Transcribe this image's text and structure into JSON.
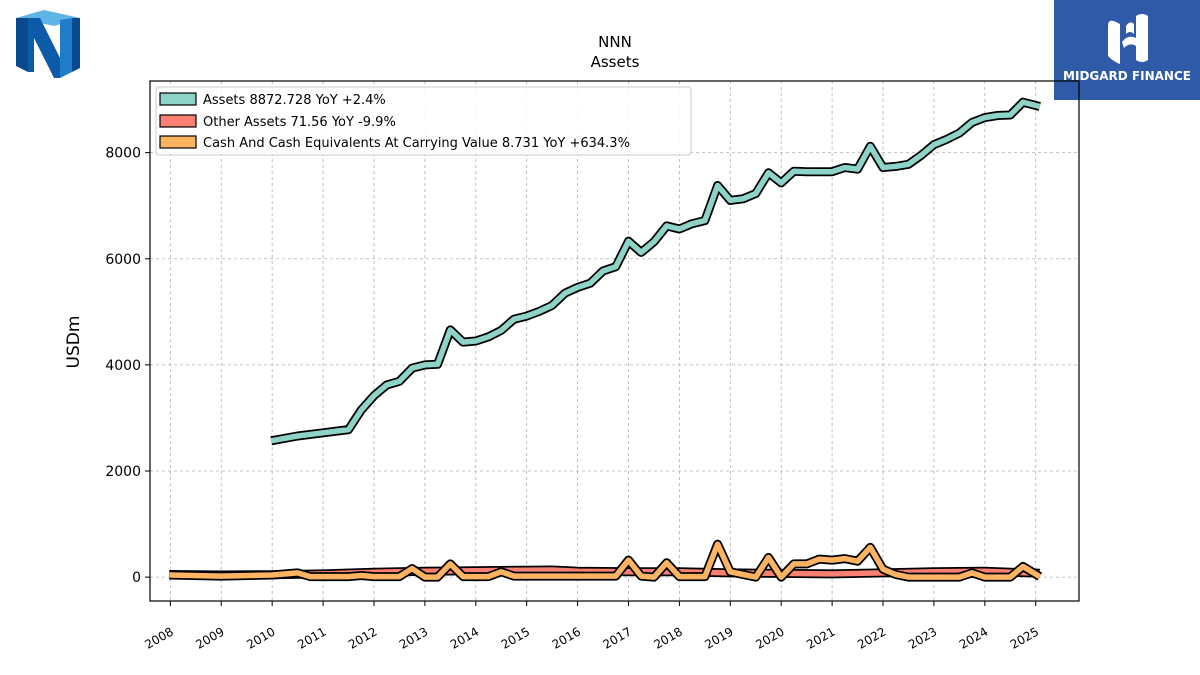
{
  "header": {
    "ticker": "NNN",
    "subtitle": "Assets"
  },
  "brand": {
    "name": "MIDGARD FINANCE",
    "color": "#2f5aa8"
  },
  "chart_data": {
    "type": "line",
    "title": "NNN",
    "subtitle": "Assets",
    "ylabel": "USDm",
    "xlabel": "",
    "xlim": [
      2007.6,
      2025.85
    ],
    "ylim": [
      -450,
      9350
    ],
    "yticks": [
      0,
      2000,
      4000,
      6000,
      8000
    ],
    "xticks": [
      2008,
      2009,
      2010,
      2011,
      2012,
      2013,
      2014,
      2015,
      2016,
      2017,
      2018,
      2019,
      2020,
      2021,
      2022,
      2023,
      2024,
      2025
    ],
    "grid": true,
    "legend_position": "top-left",
    "series": [
      {
        "name": "Assets",
        "legend": "Assets  8872.728 YoY +2.4%",
        "color": "#8dd3c7",
        "x": [
          2009.98,
          2010.5,
          2011.0,
          2011.5,
          2011.75,
          2012.0,
          2012.25,
          2012.5,
          2012.75,
          2013.0,
          2013.25,
          2013.5,
          2013.75,
          2014.0,
          2014.25,
          2014.5,
          2014.75,
          2015.0,
          2015.25,
          2015.5,
          2015.75,
          2016.0,
          2016.25,
          2016.5,
          2016.75,
          2017.0,
          2017.25,
          2017.5,
          2017.75,
          2018.0,
          2018.25,
          2018.5,
          2018.75,
          2019.0,
          2019.25,
          2019.5,
          2019.75,
          2020.0,
          2020.25,
          2020.5,
          2020.75,
          2021.0,
          2021.25,
          2021.5,
          2021.75,
          2022.0,
          2022.25,
          2022.5,
          2022.75,
          2023.0,
          2023.25,
          2023.5,
          2023.75,
          2024.0,
          2024.25,
          2024.5,
          2024.75,
          2025.08
        ],
        "y": [
          2570,
          2660,
          2720,
          2780,
          3150,
          3420,
          3620,
          3690,
          3940,
          4000,
          4010,
          4660,
          4430,
          4450,
          4530,
          4650,
          4860,
          4920,
          5010,
          5120,
          5350,
          5460,
          5540,
          5770,
          5850,
          6330,
          6120,
          6320,
          6620,
          6560,
          6660,
          6720,
          7380,
          7100,
          7130,
          7230,
          7620,
          7430,
          7650,
          7640,
          7640,
          7640,
          7720,
          7690,
          8120,
          7720,
          7740,
          7780,
          7950,
          8150,
          8250,
          8370,
          8570,
          8660,
          8700,
          8710,
          8950,
          8870
        ]
      },
      {
        "name": "Other Assets",
        "legend": "Other Assets  71.56 YoY -9.9%",
        "color": "#fb8072",
        "x": [
          2007.98,
          2009.0,
          2010.0,
          2011.0,
          2012.0,
          2013.0,
          2014.0,
          2015.0,
          2015.5,
          2016.0,
          2017.0,
          2018.0,
          2019.0,
          2020.0,
          2021.0,
          2022.0,
          2023.0,
          2024.0,
          2025.08
        ],
        "y": [
          50,
          40,
          45,
          60,
          90,
          110,
          120,
          130,
          135,
          110,
          100,
          100,
          80,
          70,
          60,
          80,
          100,
          110,
          72
        ]
      },
      {
        "name": "Cash And Cash Equivalents At Carrying Value",
        "legend": "Cash And Cash Equivalents At Carrying Value  8.731 YoY +634.3%",
        "color": "#fdb462",
        "x": [
          2007.98,
          2009.0,
          2010.0,
          2010.5,
          2010.75,
          2011.0,
          2011.5,
          2011.75,
          2012.0,
          2012.5,
          2012.75,
          2013.0,
          2013.25,
          2013.5,
          2013.75,
          2014.0,
          2014.25,
          2014.5,
          2014.75,
          2015.0,
          2015.5,
          2016.0,
          2016.5,
          2016.75,
          2017.0,
          2017.25,
          2017.5,
          2017.75,
          2018.0,
          2018.25,
          2018.5,
          2018.75,
          2019.0,
          2019.25,
          2019.5,
          2019.75,
          2020.0,
          2020.25,
          2020.5,
          2020.75,
          2021.0,
          2021.25,
          2021.5,
          2021.75,
          2022.0,
          2022.25,
          2022.5,
          2022.75,
          2023.0,
          2023.25,
          2023.5,
          2023.75,
          2024.0,
          2024.25,
          2024.5,
          2024.75,
          2025.08
        ],
        "y": [
          40,
          20,
          40,
          80,
          10,
          10,
          10,
          30,
          10,
          10,
          160,
          0,
          0,
          250,
          10,
          10,
          10,
          100,
          20,
          20,
          20,
          20,
          20,
          20,
          320,
          20,
          0,
          270,
          10,
          10,
          10,
          620,
          100,
          50,
          0,
          370,
          0,
          250,
          250,
          340,
          320,
          350,
          300,
          560,
          150,
          50,
          0,
          0,
          0,
          0,
          0,
          80,
          0,
          0,
          0,
          200,
          9
        ]
      }
    ]
  }
}
